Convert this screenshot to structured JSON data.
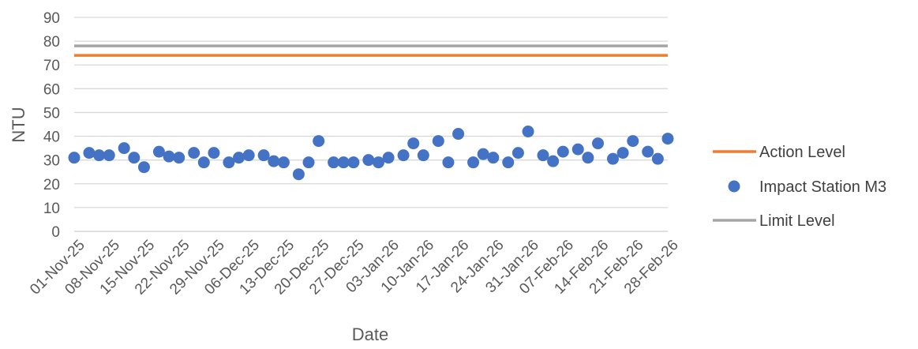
{
  "chart_data": {
    "type": "scatter",
    "title": "",
    "xlabel": "Date",
    "ylabel": "NTU",
    "ylim": [
      0,
      90
    ],
    "yticks": [
      "0",
      "10",
      "20",
      "30",
      "40",
      "50",
      "60",
      "70",
      "80",
      "90"
    ],
    "xlim": [
      "2025-11-01",
      "2026-02-28"
    ],
    "xticks": [
      "01-Nov-25",
      "08-Nov-25",
      "15-Nov-25",
      "22-Nov-25",
      "29-Nov-25",
      "06-Dec-25",
      "13-Dec-25",
      "20-Dec-25",
      "27-Dec-25",
      "03-Jan-26",
      "10-Jan-26",
      "17-Jan-26",
      "24-Jan-26",
      "31-Jan-26",
      "07-Feb-26",
      "14-Feb-26",
      "21-Feb-26",
      "28-Feb-26"
    ],
    "grid": true,
    "legend_position": "right",
    "series": [
      {
        "name": "Action Level",
        "kind": "line",
        "color": "#ED7D31",
        "x": [
          "2025-11-01",
          "2026-02-28"
        ],
        "y": [
          74,
          74
        ]
      },
      {
        "name": "Impact Station M3",
        "kind": "scatter",
        "color": "#4472C4",
        "x": [
          "2025-11-01",
          "2025-11-04",
          "2025-11-06",
          "2025-11-08",
          "2025-11-11",
          "2025-11-13",
          "2025-11-15",
          "2025-11-18",
          "2025-11-20",
          "2025-11-22",
          "2025-11-25",
          "2025-11-27",
          "2025-11-29",
          "2025-12-02",
          "2025-12-04",
          "2025-12-06",
          "2025-12-09",
          "2025-12-11",
          "2025-12-13",
          "2025-12-16",
          "2025-12-18",
          "2025-12-20",
          "2025-12-23",
          "2025-12-25",
          "2025-12-27",
          "2025-12-30",
          "2026-01-01",
          "2026-01-03",
          "2026-01-06",
          "2026-01-08",
          "2026-01-10",
          "2026-01-13",
          "2026-01-15",
          "2026-01-17",
          "2026-01-20",
          "2026-01-22",
          "2026-01-24",
          "2026-01-27",
          "2026-01-29",
          "2026-01-31",
          "2026-02-03",
          "2026-02-05",
          "2026-02-07",
          "2026-02-10",
          "2026-02-12",
          "2026-02-14",
          "2026-02-17",
          "2026-02-19",
          "2026-02-21",
          "2026-02-24",
          "2026-02-26",
          "2026-02-28"
        ],
        "y": [
          31,
          33,
          32,
          32,
          35,
          31,
          27,
          33.5,
          31.5,
          31,
          33,
          29,
          33,
          29,
          31,
          32,
          32,
          29.5,
          29,
          24,
          29,
          38,
          29,
          29,
          29,
          30,
          29,
          31,
          32,
          37,
          32,
          38,
          29,
          41,
          29,
          32.5,
          31,
          29,
          33,
          42,
          32,
          29.5,
          33.5,
          34.5,
          31,
          37,
          30.5,
          33,
          38,
          33.5,
          30.5,
          39
        ]
      },
      {
        "name": "Limit Level",
        "kind": "line",
        "color": "#A5A5A5",
        "x": [
          "2025-11-01",
          "2026-02-28"
        ],
        "y": [
          78,
          78
        ]
      }
    ]
  }
}
